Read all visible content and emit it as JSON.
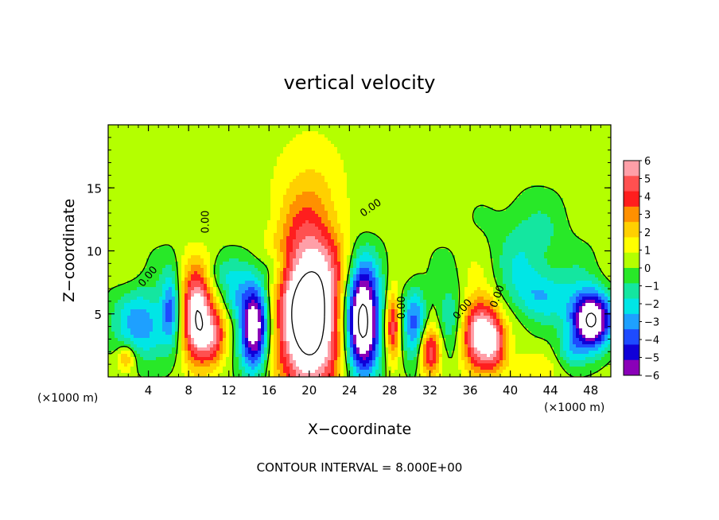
{
  "chart_data": {
    "type": "heatmap",
    "title": "vertical velocity",
    "xlabel": "X−coordinate",
    "ylabel": "Z−coordinate",
    "x_unit_left": "(×1000 m)",
    "x_unit_right": "(×1000 m)",
    "footer": "CONTOUR INTERVAL = 8.000E+00",
    "xlim": [
      0,
      50
    ],
    "ylim": [
      0,
      20
    ],
    "x_ticks": [
      4,
      8,
      12,
      16,
      20,
      24,
      28,
      32,
      36,
      40,
      44,
      48
    ],
    "x_tick_labels": [
      "4",
      "8",
      "12",
      "16",
      "20",
      "24",
      "28",
      "32",
      "36",
      "40",
      "44",
      "48"
    ],
    "y_ticks": [
      5,
      10,
      15
    ],
    "y_tick_labels": [
      "5",
      "10",
      "15"
    ],
    "contour_labels": [
      {
        "text": "0.00",
        "x": 10,
        "y": 12.3,
        "rotate": -90
      },
      {
        "text": "0.00",
        "x": 26.3,
        "y": 13.2,
        "rotate": -35
      },
      {
        "text": "0.00",
        "x": 29.5,
        "y": 5.5,
        "rotate": -90
      },
      {
        "text": "0.00",
        "x": 35.5,
        "y": 5.2,
        "rotate": -50
      },
      {
        "text": "0.00",
        "x": 39,
        "y": 6.3,
        "rotate": -70
      },
      {
        "text": "0.00",
        "x": 4.2,
        "y": 7.8,
        "rotate": -50
      }
    ],
    "colorbar": {
      "min": -6,
      "max": 6,
      "labels": [
        "6",
        "5",
        "4",
        "3",
        "2",
        "1",
        "0",
        "−1",
        "−2",
        "−3",
        "−4",
        "−5",
        "−6"
      ],
      "colors": [
        "#ff9fa8",
        "#ff5050",
        "#ff1e1e",
        "#ff9000",
        "#ffd000",
        "#ffff00",
        "#b4ff00",
        "#28e828",
        "#14e6a0",
        "#00e6e6",
        "#1ea0ff",
        "#1e4bff",
        "#1000d8",
        "#8a00b8"
      ]
    },
    "features": [
      {
        "x": 20,
        "y": 5,
        "sx": 2.2,
        "sy": 4.5,
        "amp": 10
      },
      {
        "x": 8.8,
        "y": 4.8,
        "sx": 1.0,
        "sy": 2.4,
        "amp": 8
      },
      {
        "x": 10.5,
        "y": 3.2,
        "sx": 0.9,
        "sy": 1.6,
        "amp": 4
      },
      {
        "x": 37,
        "y": 3.5,
        "sx": 1.3,
        "sy": 2.0,
        "amp": 7
      },
      {
        "x": 38.5,
        "y": 2.5,
        "sx": 0.8,
        "sy": 1.4,
        "amp": 3
      },
      {
        "x": 32,
        "y": 2.0,
        "sx": 0.8,
        "sy": 1.4,
        "amp": 5
      },
      {
        "x": 28.3,
        "y": 4.0,
        "sx": 0.5,
        "sy": 1.8,
        "amp": 5
      },
      {
        "x": 1.8,
        "y": 1.5,
        "sx": 0.6,
        "sy": 0.7,
        "amp": 3
      },
      {
        "x": 42,
        "y": 0.8,
        "sx": 2.0,
        "sy": 0.8,
        "amp": 1.2
      },
      {
        "x": 20,
        "y": 14,
        "sx": 2.5,
        "sy": 4,
        "amp": 1.2
      },
      {
        "x": 25.3,
        "y": 4.5,
        "sx": 1.2,
        "sy": 3.0,
        "amp": -10
      },
      {
        "x": 14.5,
        "y": 4.0,
        "sx": 1.0,
        "sy": 2.5,
        "amp": -8
      },
      {
        "x": 48,
        "y": 4.5,
        "sx": 1.4,
        "sy": 1.6,
        "amp": -9
      },
      {
        "x": 3.5,
        "y": 4.2,
        "sx": 2.0,
        "sy": 2.0,
        "amp": -3.5
      },
      {
        "x": 6.2,
        "y": 5.5,
        "sx": 0.6,
        "sy": 2.0,
        "amp": -3.5
      },
      {
        "x": 30.5,
        "y": 4.0,
        "sx": 0.8,
        "sy": 2.2,
        "amp": -4
      },
      {
        "x": 34,
        "y": 4.5,
        "sx": 1.0,
        "sy": 2.0,
        "amp": -2.5
      },
      {
        "x": 43,
        "y": 6.5,
        "sx": 2.5,
        "sy": 1.5,
        "amp": -2.5
      },
      {
        "x": 42,
        "y": 10.5,
        "sx": 2.5,
        "sy": 2.5,
        "amp": -1.8
      },
      {
        "x": 12,
        "y": 8.0,
        "sx": 1.5,
        "sy": 1.0,
        "amp": -1.5
      },
      {
        "x": 16.5,
        "y": 8.5,
        "sx": 1.0,
        "sy": 1.2,
        "amp": -2.0
      },
      {
        "x": 12.5,
        "y": 6.0,
        "sx": 0.8,
        "sy": 1.0,
        "amp": -2.0
      },
      {
        "x": 46,
        "y": 2.0,
        "sx": 1.0,
        "sy": 1.0,
        "amp": -2.0
      }
    ]
  }
}
